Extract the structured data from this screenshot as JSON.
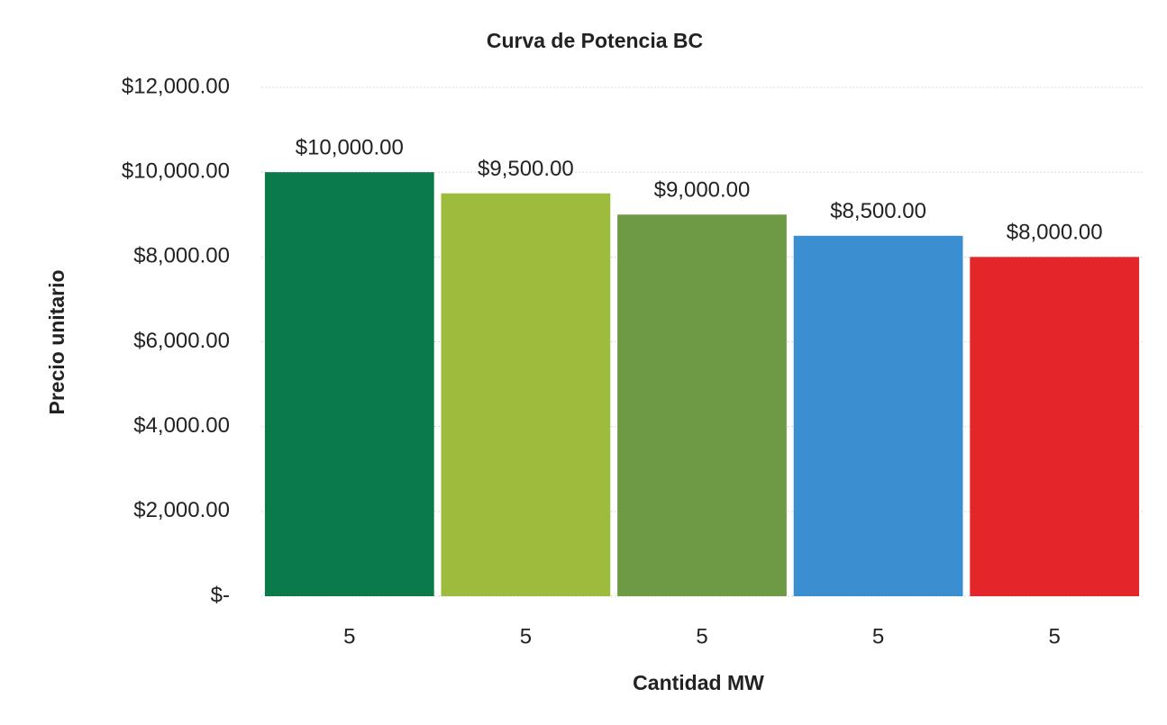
{
  "chart_data": {
    "type": "bar",
    "title": "Curva de Potencia BC",
    "x_label": "Cantidad MW",
    "y_label": "Precio unitario",
    "categories": [
      "5",
      "5",
      "5",
      "5",
      "5"
    ],
    "values": [
      10000,
      9500,
      9000,
      8500,
      8000
    ],
    "value_labels": [
      "$10,000.00",
      "$9,500.00",
      "$9,000.00",
      "$8,500.00",
      "$8,000.00"
    ],
    "colors": [
      "#0b7a4a",
      "#9dbb3c",
      "#6e9a45",
      "#3b8fd1",
      "#e2262a"
    ],
    "ylim": [
      0,
      12000
    ],
    "yticks": [
      {
        "value": 0,
        "label": "$-"
      },
      {
        "value": 2000,
        "label": "$2,000.00"
      },
      {
        "value": 4000,
        "label": "$4,000.00"
      },
      {
        "value": 6000,
        "label": "$6,000.00"
      },
      {
        "value": 8000,
        "label": "$8,000.00"
      },
      {
        "value": 10000,
        "label": "$10,000.00"
      },
      {
        "value": 12000,
        "label": "$12,000.00"
      }
    ],
    "grid": true
  }
}
